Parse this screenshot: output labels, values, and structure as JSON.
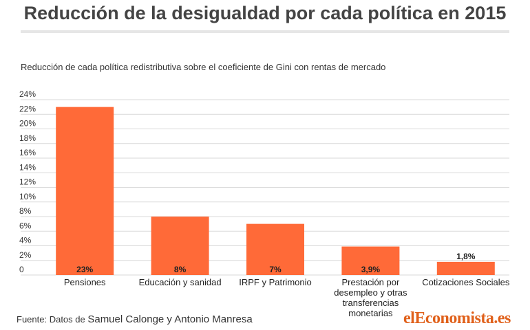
{
  "header": {
    "title": "Reducción de la desigualdad por cada política en 2015"
  },
  "chart_data": {
    "type": "bar",
    "title": "Reducción de la desigualdad por cada política en 2015",
    "subtitle": "Reducción de cada política redistributiva sobre el coeficiente de Gini con rentas de mercado",
    "categories": [
      [
        "Pensiones"
      ],
      [
        "Educación y sanidad"
      ],
      [
        "IRPF y Patrimonio"
      ],
      [
        "Prestación por",
        "desempleo y otras",
        "transferencias",
        "monetarias"
      ],
      [
        "Cotizaciones Sociales"
      ]
    ],
    "values": [
      23,
      8,
      7,
      3.9,
      1.8
    ],
    "data_labels": [
      "23%",
      "8%",
      "7%",
      "3,9%",
      "1,8%"
    ],
    "y_ticks": [
      "0",
      "2%",
      "4%",
      "6%",
      "8%",
      "10%",
      "12%",
      "14%",
      "16%",
      "18%",
      "20%",
      "22%",
      "24%"
    ],
    "ylim": [
      0,
      24
    ],
    "grid": true,
    "bar_color": "#ff6a38",
    "grid_color": "#d9d9d9"
  },
  "footer": {
    "source_prefix": "Fuente: Datos de ",
    "source_authors": "Samuel Calonge y Antonio Manresa",
    "logo_el": "el",
    "logo_name": "Economista",
    "logo_tld": ".es"
  }
}
